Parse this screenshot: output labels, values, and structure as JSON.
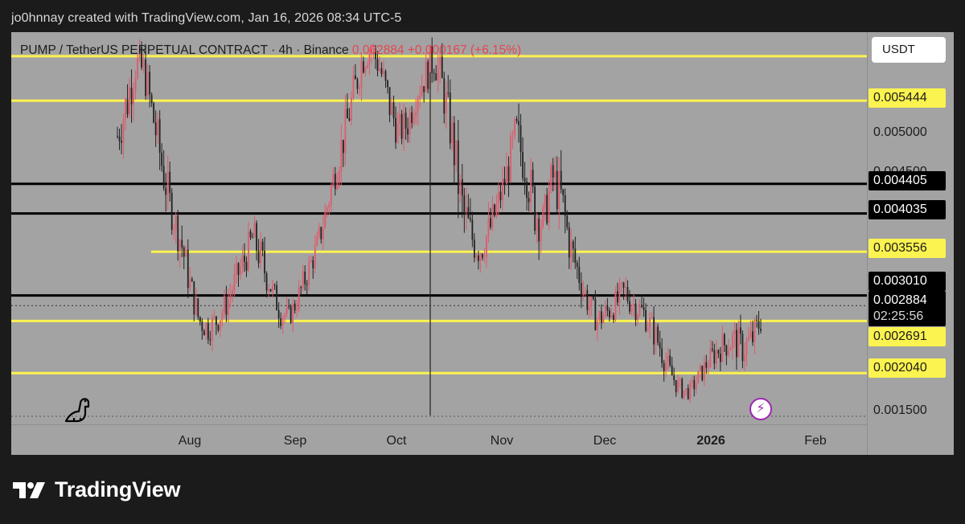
{
  "header": {
    "attribution": "jo0hnnay created with TradingView.com, Jan 16, 2026 08:34 UTC-5"
  },
  "legend": {
    "symbol": "PUMP / TetherUS PERPETUAL CONTRACT · 4h · Binance",
    "price": "0.002884",
    "change": "+0.000167 (+6.15%)"
  },
  "price_axis": {
    "unit": "USDT",
    "plain_ticks": [
      "0.005000",
      "0.004500",
      "0.001500"
    ],
    "last_price": "0.002884",
    "countdown": "02:25:56"
  },
  "brand": {
    "name": "TradingView"
  },
  "colors": {
    "background": "#1b1b1b",
    "plot": "#a3a3a3",
    "support_line": "#fbf34f",
    "key_line": "#000000",
    "down_candle": "#222222",
    "up_candle": "#e05a6b",
    "change_text": "#f23645"
  },
  "icons": {
    "bolt": "lightning-bolt-icon",
    "dino": "dinosaur-icon",
    "logo": "tradingview-logo-icon"
  },
  "chart_data": {
    "type": "candlestick",
    "title": "PUMP / TetherUS PERPETUAL CONTRACT · 4h · Binance",
    "timeframe": "4h",
    "x_axis_labels": [
      "Aug",
      "Sep",
      "Oct",
      "Nov",
      "Dec",
      "2026",
      "Feb"
    ],
    "ylim": [
      0.0014,
      0.0063
    ],
    "y_ticks": [
      0.0015,
      0.0045,
      0.005
    ],
    "horizontal_levels": [
      {
        "value": 0.006,
        "style": "yellow",
        "label": ""
      },
      {
        "value": 0.005444,
        "style": "yellow",
        "label": "0.005444"
      },
      {
        "value": 0.004405,
        "style": "black",
        "label": "0.004405"
      },
      {
        "value": 0.004035,
        "style": "black",
        "label": "0.004035"
      },
      {
        "value": 0.003556,
        "style": "yellow",
        "label": "0.003556"
      },
      {
        "value": 0.00301,
        "style": "black",
        "label": "0.003010"
      },
      {
        "value": 0.002691,
        "style": "yellow",
        "label": "0.002691"
      },
      {
        "value": 0.00204,
        "style": "yellow",
        "label": "0.002040"
      }
    ],
    "last_price": 0.002884,
    "price_path": [
      [
        0.0053,
        0.0047
      ],
      [
        0.0058,
        0.005
      ],
      [
        0.0062,
        0.0056
      ],
      [
        0.0061,
        0.0055
      ],
      [
        0.0055,
        0.0049
      ],
      [
        0.005,
        0.0042
      ],
      [
        0.0043,
        0.0038
      ],
      [
        0.004,
        0.0034
      ],
      [
        0.0034,
        0.0029
      ],
      [
        0.0029,
        0.0025
      ],
      [
        0.0028,
        0.0024
      ],
      [
        0.0029,
        0.0025
      ],
      [
        0.0031,
        0.0027
      ],
      [
        0.0034,
        0.003
      ],
      [
        0.0037,
        0.0032
      ],
      [
        0.004,
        0.0035
      ],
      [
        0.0037,
        0.0031
      ],
      [
        0.0033,
        0.0029
      ],
      [
        0.003,
        0.0026
      ],
      [
        0.0029,
        0.0026
      ],
      [
        0.0032,
        0.0028
      ],
      [
        0.0035,
        0.0031
      ],
      [
        0.0038,
        0.0034
      ],
      [
        0.0043,
        0.0038
      ],
      [
        0.0048,
        0.0043
      ],
      [
        0.0053,
        0.0047
      ],
      [
        0.0058,
        0.0052
      ],
      [
        0.0062,
        0.0057
      ],
      [
        0.0063,
        0.0059
      ],
      [
        0.0061,
        0.0056
      ],
      [
        0.0057,
        0.0051
      ],
      [
        0.0053,
        0.0048
      ],
      [
        0.0054,
        0.0049
      ],
      [
        0.0058,
        0.0053
      ],
      [
        0.006,
        0.0055
      ],
      [
        0.0063,
        0.0057
      ],
      [
        0.0059,
        0.0052
      ],
      [
        0.0053,
        0.0046
      ],
      [
        0.0046,
        0.0036
      ],
      [
        0.0041,
        0.0034
      ],
      [
        0.0039,
        0.0033
      ],
      [
        0.0041,
        0.0035
      ],
      [
        0.0044,
        0.0039
      ],
      [
        0.0048,
        0.0043
      ],
      [
        0.0054,
        0.0046
      ],
      [
        0.005,
        0.0043
      ],
      [
        0.0045,
        0.0037
      ],
      [
        0.0042,
        0.0036
      ],
      [
        0.0048,
        0.0042
      ],
      [
        0.0046,
        0.0038
      ],
      [
        0.0039,
        0.0033
      ],
      [
        0.0035,
        0.003
      ],
      [
        0.0031,
        0.0027
      ],
      [
        0.0029,
        0.0025
      ],
      [
        0.003,
        0.0026
      ],
      [
        0.0031,
        0.0027
      ],
      [
        0.0033,
        0.0028
      ],
      [
        0.0031,
        0.0027
      ],
      [
        0.003,
        0.0026
      ],
      [
        0.0028,
        0.0024
      ],
      [
        0.0026,
        0.0021
      ],
      [
        0.0022,
        0.0019
      ],
      [
        0.002,
        0.0017
      ],
      [
        0.0019,
        0.0017
      ],
      [
        0.0021,
        0.0018
      ],
      [
        0.0023,
        0.002
      ],
      [
        0.0025,
        0.0021
      ],
      [
        0.0026,
        0.0022
      ],
      [
        0.0027,
        0.0022
      ],
      [
        0.0026,
        0.0021
      ],
      [
        0.0027,
        0.0022
      ],
      [
        0.0029,
        0.0025
      ]
    ]
  }
}
